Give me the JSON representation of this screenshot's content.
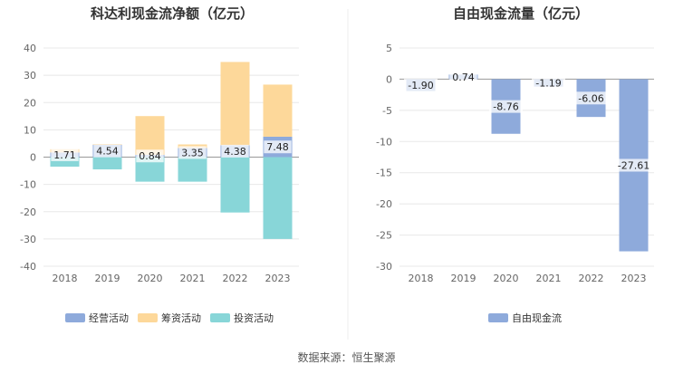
{
  "source_text": "数据来源：恒生聚源",
  "chart_data": [
    {
      "type": "bar",
      "stacked": true,
      "title": "科达利现金流净额（亿元）",
      "categories": [
        "2018",
        "2019",
        "2020",
        "2021",
        "2022",
        "2023"
      ],
      "ylim": [
        -40,
        40
      ],
      "yticks": [
        -40,
        -30,
        -20,
        -10,
        0,
        10,
        20,
        30,
        40
      ],
      "grid": true,
      "legend_position": "bottom",
      "series": [
        {
          "name": "经营活动",
          "color": "#8eaadb",
          "values": [
            1.71,
            4.54,
            0.84,
            3.35,
            4.38,
            7.48
          ]
        },
        {
          "name": "筹资活动",
          "color": "#fdd89a",
          "values": [
            1.2,
            0.2,
            14.2,
            1.3,
            30.5,
            19.1
          ]
        },
        {
          "name": "投资活动",
          "color": "#88d6d8",
          "values": [
            -3.5,
            -4.5,
            -9.0,
            -9.0,
            -20.3,
            -30.0
          ]
        }
      ],
      "data_labels": [
        "1.71",
        "4.54",
        "0.84",
        "3.35",
        "4.38",
        "7.48"
      ]
    },
    {
      "type": "bar",
      "title": "自由现金流量（亿元）",
      "categories": [
        "2018",
        "2019",
        "2020",
        "2021",
        "2022",
        "2023"
      ],
      "ylim": [
        -30,
        5
      ],
      "yticks": [
        -30,
        -25,
        -20,
        -15,
        -10,
        -5,
        0,
        5
      ],
      "grid": true,
      "legend_position": "bottom",
      "series": [
        {
          "name": "自由现金流",
          "color": "#8eaadb",
          "values": [
            -1.9,
            0.74,
            -8.76,
            -1.19,
            -6.06,
            -27.61
          ]
        }
      ],
      "data_labels": [
        "-1.90",
        "0.74",
        "-8.76",
        "-1.19",
        "-6.06",
        "-27.61"
      ]
    }
  ]
}
